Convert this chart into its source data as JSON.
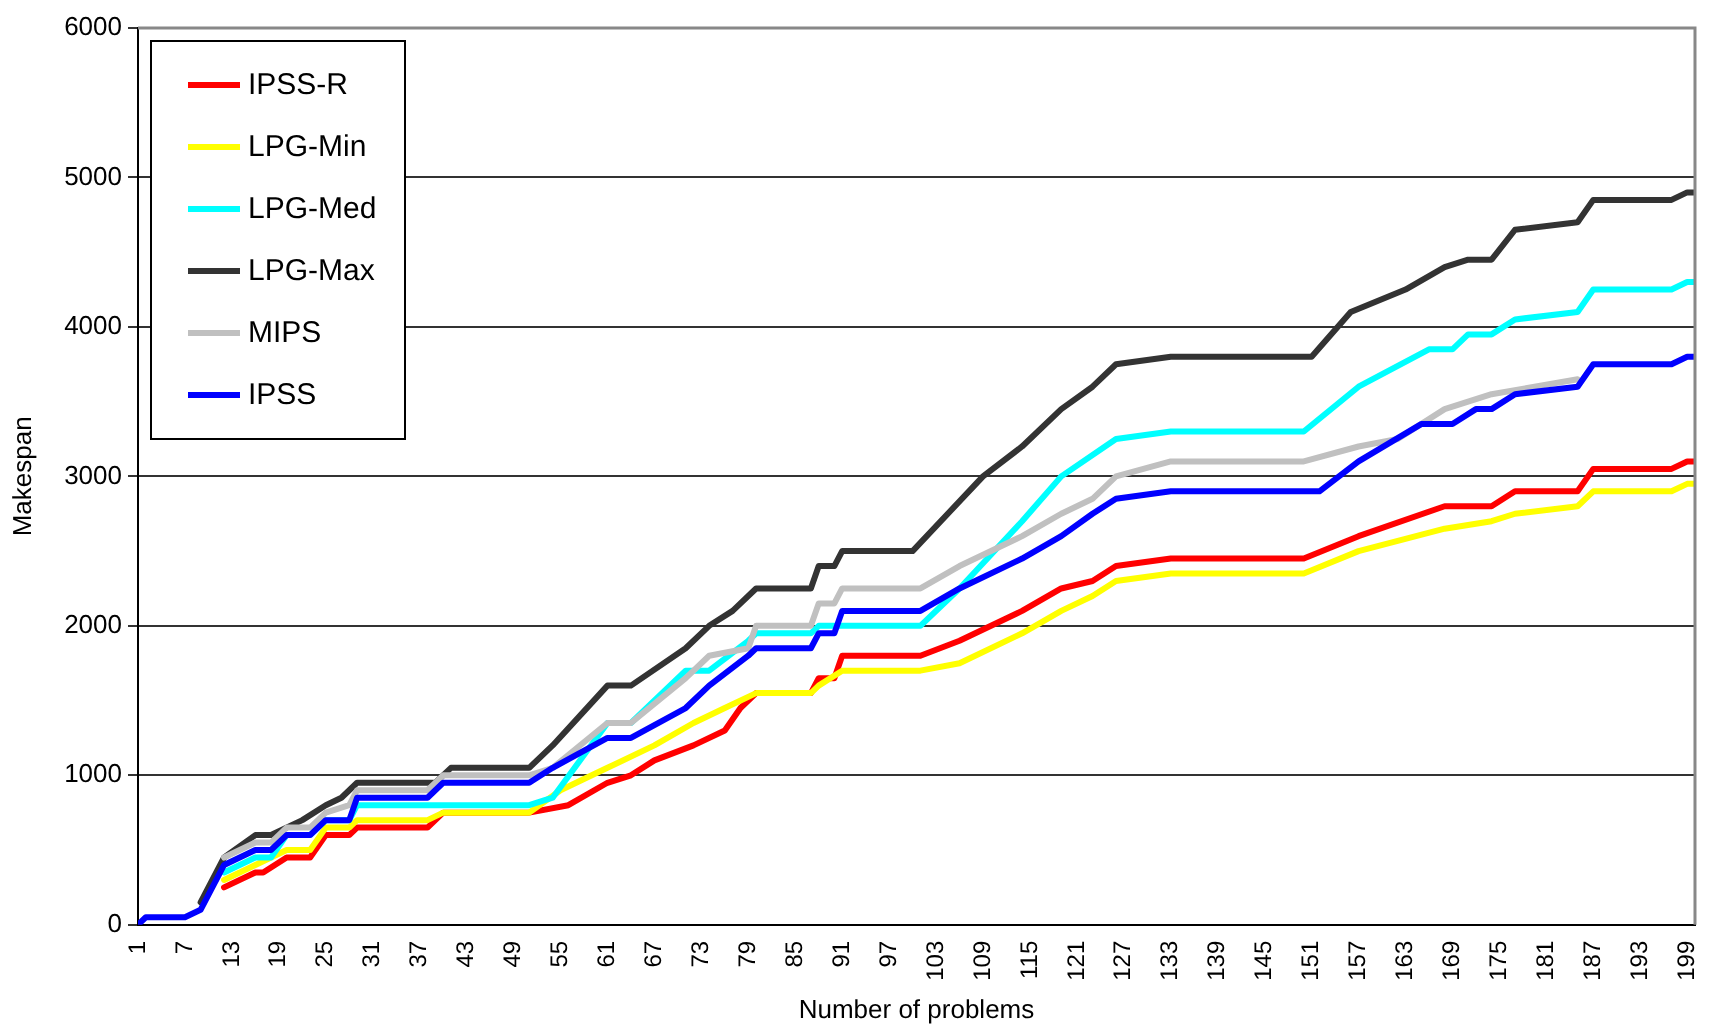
{
  "chart_data": {
    "type": "line",
    "xlabel": "Number of problems",
    "ylabel": "Makespan",
    "xlim": [
      1,
      200
    ],
    "ylim": [
      0,
      6000
    ],
    "xticks": [
      1,
      7,
      13,
      19,
      25,
      31,
      37,
      43,
      49,
      55,
      61,
      67,
      73,
      79,
      85,
      91,
      97,
      103,
      109,
      115,
      121,
      127,
      133,
      139,
      145,
      151,
      157,
      163,
      169,
      175,
      181,
      187,
      193,
      199
    ],
    "yticks": [
      0,
      1000,
      2000,
      3000,
      4000,
      5000,
      6000
    ],
    "grid": "y",
    "legend": "top left",
    "marker": "none",
    "line_style": "solid",
    "series": [
      {
        "name": "IPSS-R",
        "color": "#ff0000",
        "x": [
          12,
          16,
          17,
          20,
          23,
          25,
          28,
          29,
          38,
          40,
          51,
          56,
          61,
          64,
          67,
          72,
          76,
          78,
          80,
          87,
          88,
          90,
          91,
          101,
          106,
          114,
          119,
          123,
          126,
          133,
          150,
          157,
          168,
          174,
          177,
          185,
          187,
          197,
          199,
          200
        ],
        "values": [
          250,
          350,
          350,
          450,
          450,
          600,
          600,
          650,
          650,
          750,
          750,
          800,
          950,
          1000,
          1100,
          1200,
          1300,
          1450,
          1550,
          1550,
          1650,
          1650,
          1800,
          1800,
          1900,
          2100,
          2250,
          2300,
          2400,
          2450,
          2450,
          2600,
          2800,
          2800,
          2900,
          2900,
          3050,
          3050,
          3100,
          3100
        ]
      },
      {
        "name": "LPG-Min",
        "color": "#ffff00",
        "x": [
          12,
          16,
          18,
          20,
          23,
          25,
          28,
          29,
          38,
          40,
          51,
          55,
          61,
          67,
          72,
          76,
          80,
          87,
          88,
          91,
          101,
          106,
          114,
          119,
          123,
          126,
          133,
          150,
          157,
          168,
          174,
          177,
          185,
          187,
          197,
          199,
          200
        ],
        "values": [
          300,
          400,
          450,
          500,
          500,
          650,
          650,
          700,
          700,
          750,
          750,
          900,
          1050,
          1200,
          1350,
          1450,
          1550,
          1550,
          1600,
          1700,
          1700,
          1750,
          1950,
          2100,
          2200,
          2300,
          2350,
          2350,
          2500,
          2650,
          2700,
          2750,
          2800,
          2900,
          2900,
          2950,
          2950
        ]
      },
      {
        "name": "LPG-Med",
        "color": "#00ffff",
        "x": [
          12,
          16,
          18,
          20,
          23,
          25,
          28,
          29,
          38,
          40,
          51,
          54,
          61,
          64,
          71,
          74,
          79,
          80,
          87,
          88,
          91,
          101,
          106,
          114,
          119,
          126,
          133,
          150,
          157,
          166,
          169,
          171,
          174,
          177,
          185,
          187,
          197,
          199,
          200
        ],
        "values": [
          350,
          450,
          450,
          600,
          600,
          700,
          700,
          800,
          800,
          800,
          800,
          850,
          1350,
          1350,
          1700,
          1700,
          1900,
          1950,
          1950,
          2000,
          2000,
          2000,
          2250,
          2700,
          3000,
          3250,
          3300,
          3300,
          3600,
          3850,
          3850,
          3950,
          3950,
          4050,
          4100,
          4250,
          4250,
          4300,
          4300
        ]
      },
      {
        "name": "LPG-Max",
        "color": "#333333",
        "x": [
          9,
          12,
          16,
          18,
          22,
          25,
          27,
          29,
          39,
          41,
          51,
          54,
          61,
          64,
          71,
          74,
          77,
          80,
          87,
          88,
          90,
          91,
          100,
          109,
          114,
          119,
          123,
          126,
          133,
          151,
          156,
          163,
          168,
          171,
          174,
          177,
          185,
          187,
          197,
          199,
          200
        ],
        "values": [
          150,
          450,
          600,
          600,
          700,
          800,
          850,
          950,
          950,
          1050,
          1050,
          1200,
          1600,
          1600,
          1850,
          2000,
          2100,
          2250,
          2250,
          2400,
          2400,
          2500,
          2500,
          3000,
          3200,
          3450,
          3600,
          3750,
          3800,
          3800,
          4100,
          4250,
          4400,
          4450,
          4450,
          4650,
          4700,
          4850,
          4850,
          4900,
          4900
        ]
      },
      {
        "name": "MIPS",
        "color": "#c0c0c0",
        "x": [
          12,
          16,
          18,
          20,
          23,
          25,
          28,
          29,
          38,
          40,
          51,
          54,
          61,
          64,
          71,
          74,
          79,
          80,
          87,
          88,
          90,
          91,
          101,
          106,
          114,
          119,
          123,
          126,
          133,
          150,
          157,
          162,
          168,
          174,
          185
        ],
        "values": [
          450,
          550,
          550,
          650,
          650,
          750,
          800,
          900,
          900,
          1000,
          1000,
          1050,
          1350,
          1350,
          1650,
          1800,
          1850,
          2000,
          2000,
          2150,
          2150,
          2250,
          2250,
          2400,
          2600,
          2750,
          2850,
          3000,
          3100,
          3100,
          3200,
          3250,
          3450,
          3550,
          3650
        ]
      },
      {
        "name": "IPSS",
        "color": "#0000ff",
        "x": [
          1,
          2,
          7,
          9,
          12,
          16,
          18,
          20,
          23,
          25,
          28,
          29,
          38,
          40,
          51,
          54,
          61,
          64,
          71,
          74,
          79,
          80,
          87,
          88,
          90,
          91,
          101,
          106,
          114,
          119,
          123,
          126,
          133,
          152,
          157,
          165,
          169,
          172,
          174,
          177,
          185,
          187,
          197,
          199,
          200
        ],
        "values": [
          0,
          50,
          50,
          100,
          400,
          500,
          500,
          600,
          600,
          700,
          700,
          850,
          850,
          950,
          950,
          1050,
          1250,
          1250,
          1450,
          1600,
          1800,
          1850,
          1850,
          1950,
          1950,
          2100,
          2100,
          2250,
          2450,
          2600,
          2750,
          2850,
          2900,
          2900,
          3100,
          3350,
          3350,
          3450,
          3450,
          3550,
          3600,
          3750,
          3750,
          3800,
          3800
        ]
      }
    ]
  }
}
